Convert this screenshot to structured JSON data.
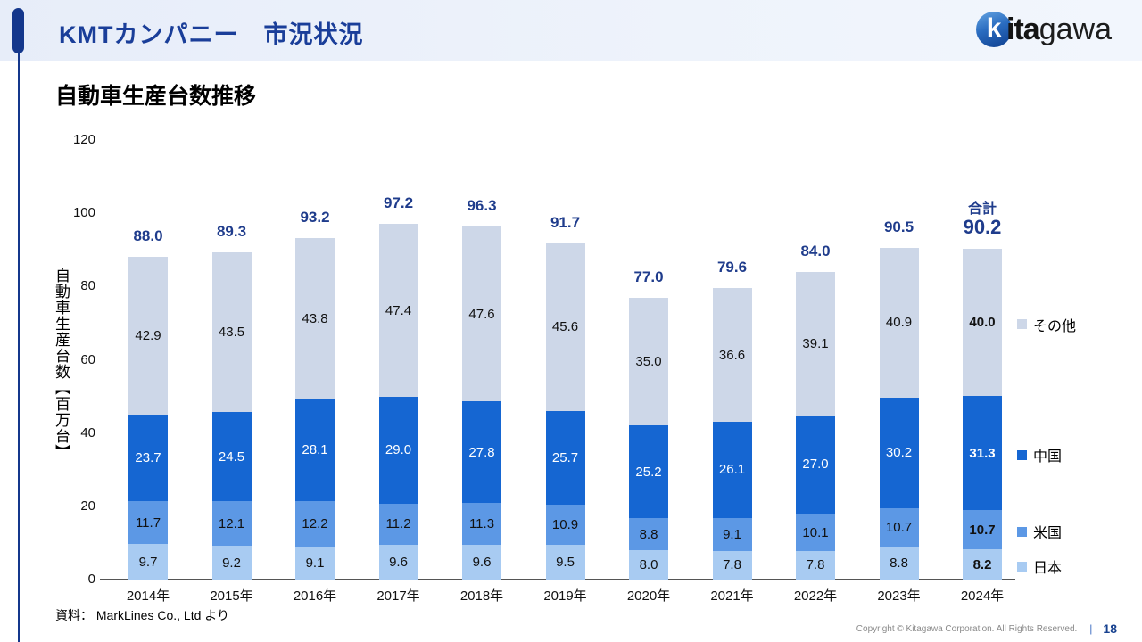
{
  "header": {
    "title": "KMTカンパニー　市況状況",
    "logo": {
      "icon_letter": "k",
      "text_bold": "ita",
      "text_light": "gawa"
    }
  },
  "slide": {
    "title": "自動車生産台数推移",
    "source": "資料： MarkLines Co., Ltd  より"
  },
  "colors": {
    "accent_navy": "#14378c",
    "title_blue": "#1a3e99",
    "total_label_blue": "#1f3c8c",
    "header_band": "#edf2fb"
  },
  "chart_data": {
    "type": "bar",
    "stacked": true,
    "title": "自動車生産台数推移",
    "ylabel": "自動車生産台数【百万台】",
    "xlabel": "",
    "ylim": [
      0,
      120
    ],
    "yticks": [
      0,
      20,
      40,
      60,
      80,
      100,
      120
    ],
    "grid": false,
    "legend_position": "right",
    "categories": [
      "2014年",
      "2015年",
      "2016年",
      "2017年",
      "2018年",
      "2019年",
      "2020年",
      "2021年",
      "2022年",
      "2023年",
      "2024年"
    ],
    "series": [
      {
        "name": "日本",
        "color": "#a8cbf2",
        "label_color": "#111111",
        "values": [
          9.7,
          9.2,
          9.1,
          9.6,
          9.6,
          9.5,
          8.0,
          7.8,
          7.8,
          8.8,
          8.2
        ]
      },
      {
        "name": "米国",
        "color": "#5c98e5",
        "label_color": "#111111",
        "values": [
          11.7,
          12.1,
          12.2,
          11.2,
          11.3,
          10.9,
          8.8,
          9.1,
          10.1,
          10.7,
          10.7
        ]
      },
      {
        "name": "中国",
        "color": "#1566d2",
        "label_color": "#ffffff",
        "values": [
          23.7,
          24.5,
          28.1,
          29.0,
          27.8,
          25.7,
          25.2,
          26.1,
          27.0,
          30.2,
          31.3
        ]
      },
      {
        "name": "その他",
        "color": "#cdd7e8",
        "label_color": "#111111",
        "values": [
          42.9,
          43.5,
          43.8,
          47.4,
          47.6,
          45.6,
          35.0,
          36.6,
          39.1,
          40.9,
          40.0
        ]
      }
    ],
    "totals": [
      88.0,
      89.3,
      93.2,
      97.2,
      96.3,
      91.7,
      77.0,
      79.6,
      84.0,
      90.5,
      90.2
    ],
    "last_total_caption": "合計"
  },
  "footer": {
    "copyright": "Copyright © Kitagawa Corporation. All Rights Reserved.",
    "separator": "|",
    "page": "18"
  }
}
